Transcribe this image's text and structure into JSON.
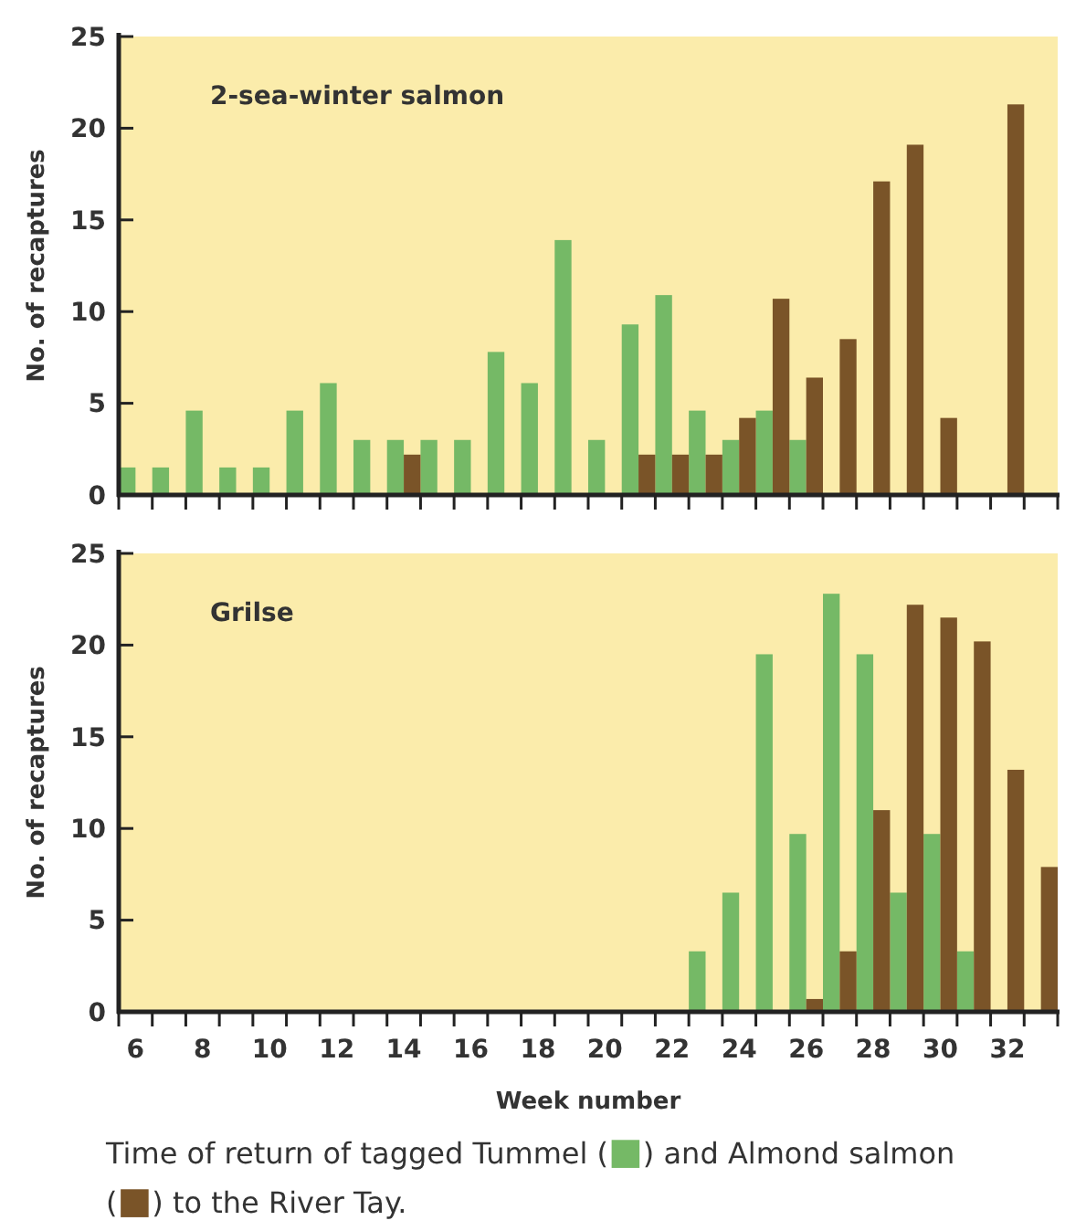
{
  "chart_data": [
    {
      "type": "bar",
      "title": "2-sea-winter salmon",
      "ylabel": "No. of recaptures",
      "tick_labels": "y",
      "grid": false,
      "categories": [
        null,
        null,
        null,
        null,
        null,
        null,
        null,
        null,
        null,
        null,
        null,
        null,
        null,
        null,
        null,
        null,
        null,
        null,
        null,
        null,
        null,
        null,
        null,
        null,
        null,
        null,
        null,
        null
      ],
      "ylim": [
        0,
        25
      ],
      "yticks": [
        0,
        5,
        10,
        15,
        20,
        25
      ],
      "series": [
        {
          "color": "#75b966",
          "values": [
            1.5,
            1.5,
            4.6,
            1.5,
            1.5,
            4.6,
            6.1,
            3.0,
            3.0,
            3.0,
            3.0,
            7.8,
            6.1,
            13.9,
            3.0,
            9.3,
            10.9,
            4.6,
            3.0,
            4.6,
            3.0,
            null,
            null,
            null,
            null,
            null,
            null,
            null
          ]
        },
        {
          "color": "#7a5428",
          "values": [
            null,
            null,
            null,
            null,
            null,
            null,
            null,
            null,
            2.2,
            null,
            null,
            null,
            null,
            null,
            null,
            2.2,
            2.2,
            2.2,
            4.2,
            10.7,
            6.4,
            8.5,
            17.1,
            19.1,
            4.2,
            null,
            21.3,
            null
          ]
        }
      ]
    },
    {
      "type": "bar",
      "title": "Grilse",
      "ylabel": "No. of recaptures",
      "xlabel": "Week number",
      "grid": false,
      "categories": [
        "6",
        null,
        "8",
        null,
        "10",
        null,
        "12",
        null,
        "14",
        null,
        "16",
        null,
        "18",
        null,
        "20",
        null,
        "22",
        null,
        "24",
        null,
        "26",
        null,
        "28",
        null,
        "30",
        null,
        "32",
        null
      ],
      "ylim": [
        0,
        25
      ],
      "yticks": [
        0,
        5,
        10,
        15,
        20,
        25
      ],
      "annotations": [
        "Time of return of tagged Tummel (■) and Almond salmon (■) to the River Tay."
      ],
      "series": [
        {
          "color": "#75b966",
          "values": [
            null,
            null,
            null,
            null,
            null,
            null,
            null,
            null,
            null,
            null,
            null,
            null,
            null,
            null,
            null,
            null,
            null,
            3.3,
            6.5,
            19.5,
            9.7,
            22.8,
            19.5,
            6.5,
            9.7,
            3.3,
            null,
            null
          ]
        },
        {
          "color": "#7a5428",
          "values": [
            null,
            null,
            null,
            null,
            null,
            null,
            null,
            null,
            null,
            null,
            null,
            null,
            null,
            null,
            null,
            null,
            null,
            null,
            null,
            0.1,
            0.7,
            3.3,
            11.0,
            22.2,
            21.5,
            20.2,
            13.2,
            7.9
          ]
        }
      ]
    }
  ]
}
